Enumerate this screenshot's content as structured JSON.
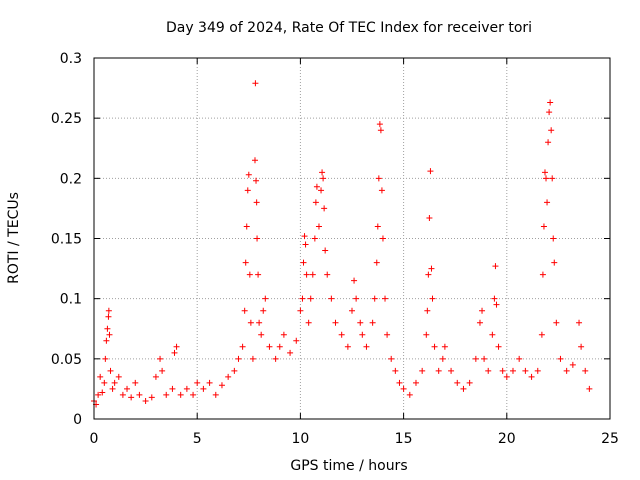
{
  "chart_data": {
    "type": "scatter",
    "title": "Day 349 of 2024, Rate Of TEC Index for receiver tori",
    "xlabel": "GPS time / hours",
    "ylabel": "ROTI / TECUs",
    "xlim": [
      0,
      25
    ],
    "ylim": [
      0,
      0.3
    ],
    "xticks": [
      0,
      5,
      10,
      15,
      20,
      25
    ],
    "xtick_labels": [
      "0",
      "5",
      "10",
      "15",
      "20",
      "25"
    ],
    "yticks": [
      0,
      0.05,
      0.1,
      0.15,
      0.2,
      0.25,
      0.3
    ],
    "ytick_labels": [
      "0",
      "0.05",
      "0.1",
      "0.15",
      "0.2",
      "0.25",
      "0.3"
    ],
    "grid": true,
    "marker": "+",
    "color": "#ff0000",
    "series": [
      {
        "name": "ROTI",
        "points": [
          [
            0.0,
            0.015
          ],
          [
            0.1,
            0.012
          ],
          [
            0.2,
            0.02
          ],
          [
            0.3,
            0.035
          ],
          [
            0.4,
            0.022
          ],
          [
            0.5,
            0.03
          ],
          [
            0.55,
            0.05
          ],
          [
            0.6,
            0.065
          ],
          [
            0.65,
            0.075
          ],
          [
            0.7,
            0.085
          ],
          [
            0.72,
            0.09
          ],
          [
            0.75,
            0.07
          ],
          [
            0.8,
            0.04
          ],
          [
            0.9,
            0.025
          ],
          [
            1.0,
            0.03
          ],
          [
            1.2,
            0.035
          ],
          [
            1.4,
            0.02
          ],
          [
            1.6,
            0.025
          ],
          [
            1.8,
            0.018
          ],
          [
            2.0,
            0.03
          ],
          [
            2.2,
            0.02
          ],
          [
            2.5,
            0.015
          ],
          [
            2.8,
            0.018
          ],
          [
            3.0,
            0.035
          ],
          [
            3.2,
            0.05
          ],
          [
            3.3,
            0.04
          ],
          [
            3.5,
            0.02
          ],
          [
            3.8,
            0.025
          ],
          [
            3.9,
            0.055
          ],
          [
            4.0,
            0.06
          ],
          [
            4.2,
            0.02
          ],
          [
            4.5,
            0.025
          ],
          [
            4.8,
            0.02
          ],
          [
            5.0,
            0.03
          ],
          [
            5.3,
            0.025
          ],
          [
            5.6,
            0.03
          ],
          [
            5.9,
            0.02
          ],
          [
            6.2,
            0.028
          ],
          [
            6.5,
            0.035
          ],
          [
            6.8,
            0.04
          ],
          [
            7.0,
            0.05
          ],
          [
            7.2,
            0.06
          ],
          [
            7.3,
            0.09
          ],
          [
            7.35,
            0.13
          ],
          [
            7.4,
            0.16
          ],
          [
            7.45,
            0.19
          ],
          [
            7.5,
            0.203
          ],
          [
            7.55,
            0.12
          ],
          [
            7.6,
            0.08
          ],
          [
            7.7,
            0.05
          ],
          [
            7.8,
            0.215
          ],
          [
            7.82,
            0.279
          ],
          [
            7.85,
            0.198
          ],
          [
            7.88,
            0.18
          ],
          [
            7.9,
            0.15
          ],
          [
            7.95,
            0.12
          ],
          [
            8.0,
            0.08
          ],
          [
            8.1,
            0.07
          ],
          [
            8.2,
            0.09
          ],
          [
            8.3,
            0.1
          ],
          [
            8.5,
            0.06
          ],
          [
            8.8,
            0.05
          ],
          [
            9.0,
            0.06
          ],
          [
            9.2,
            0.07
          ],
          [
            9.5,
            0.055
          ],
          [
            9.8,
            0.065
          ],
          [
            10.0,
            0.09
          ],
          [
            10.1,
            0.1
          ],
          [
            10.15,
            0.13
          ],
          [
            10.2,
            0.152
          ],
          [
            10.25,
            0.145
          ],
          [
            10.3,
            0.12
          ],
          [
            10.4,
            0.08
          ],
          [
            10.5,
            0.1
          ],
          [
            10.6,
            0.12
          ],
          [
            10.7,
            0.15
          ],
          [
            10.75,
            0.18
          ],
          [
            10.8,
            0.193
          ],
          [
            10.9,
            0.16
          ],
          [
            11.0,
            0.19
          ],
          [
            11.05,
            0.205
          ],
          [
            11.1,
            0.2
          ],
          [
            11.15,
            0.175
          ],
          [
            11.2,
            0.14
          ],
          [
            11.3,
            0.12
          ],
          [
            11.5,
            0.1
          ],
          [
            11.7,
            0.08
          ],
          [
            12.0,
            0.07
          ],
          [
            12.3,
            0.06
          ],
          [
            12.5,
            0.09
          ],
          [
            12.6,
            0.115
          ],
          [
            12.7,
            0.1
          ],
          [
            12.9,
            0.08
          ],
          [
            13.0,
            0.07
          ],
          [
            13.2,
            0.06
          ],
          [
            13.5,
            0.08
          ],
          [
            13.6,
            0.1
          ],
          [
            13.7,
            0.13
          ],
          [
            13.75,
            0.16
          ],
          [
            13.8,
            0.2
          ],
          [
            13.85,
            0.245
          ],
          [
            13.9,
            0.24
          ],
          [
            13.95,
            0.19
          ],
          [
            14.0,
            0.15
          ],
          [
            14.1,
            0.1
          ],
          [
            14.2,
            0.07
          ],
          [
            14.4,
            0.05
          ],
          [
            14.6,
            0.04
          ],
          [
            14.8,
            0.03
          ],
          [
            15.0,
            0.025
          ],
          [
            15.3,
            0.02
          ],
          [
            15.6,
            0.03
          ],
          [
            15.9,
            0.04
          ],
          [
            16.1,
            0.07
          ],
          [
            16.15,
            0.09
          ],
          [
            16.2,
            0.12
          ],
          [
            16.25,
            0.167
          ],
          [
            16.3,
            0.206
          ],
          [
            16.35,
            0.125
          ],
          [
            16.4,
            0.1
          ],
          [
            16.5,
            0.06
          ],
          [
            16.7,
            0.04
          ],
          [
            16.9,
            0.05
          ],
          [
            17.0,
            0.06
          ],
          [
            17.3,
            0.04
          ],
          [
            17.6,
            0.03
          ],
          [
            17.9,
            0.025
          ],
          [
            18.2,
            0.03
          ],
          [
            18.5,
            0.05
          ],
          [
            18.7,
            0.08
          ],
          [
            18.8,
            0.09
          ],
          [
            18.9,
            0.05
          ],
          [
            19.1,
            0.04
          ],
          [
            19.3,
            0.07
          ],
          [
            19.4,
            0.1
          ],
          [
            19.45,
            0.127
          ],
          [
            19.5,
            0.095
          ],
          [
            19.6,
            0.06
          ],
          [
            19.8,
            0.04
          ],
          [
            20.0,
            0.035
          ],
          [
            20.3,
            0.04
          ],
          [
            20.6,
            0.05
          ],
          [
            20.9,
            0.04
          ],
          [
            21.2,
            0.035
          ],
          [
            21.5,
            0.04
          ],
          [
            21.7,
            0.07
          ],
          [
            21.75,
            0.12
          ],
          [
            21.8,
            0.16
          ],
          [
            21.85,
            0.205
          ],
          [
            21.9,
            0.2
          ],
          [
            21.95,
            0.18
          ],
          [
            22.0,
            0.23
          ],
          [
            22.05,
            0.255
          ],
          [
            22.1,
            0.263
          ],
          [
            22.15,
            0.24
          ],
          [
            22.2,
            0.2
          ],
          [
            22.25,
            0.15
          ],
          [
            22.3,
            0.13
          ],
          [
            22.4,
            0.08
          ],
          [
            22.6,
            0.05
          ],
          [
            22.9,
            0.04
          ],
          [
            23.2,
            0.045
          ],
          [
            23.5,
            0.08
          ],
          [
            23.6,
            0.06
          ],
          [
            23.8,
            0.04
          ],
          [
            24.0,
            0.025
          ]
        ]
      }
    ]
  }
}
